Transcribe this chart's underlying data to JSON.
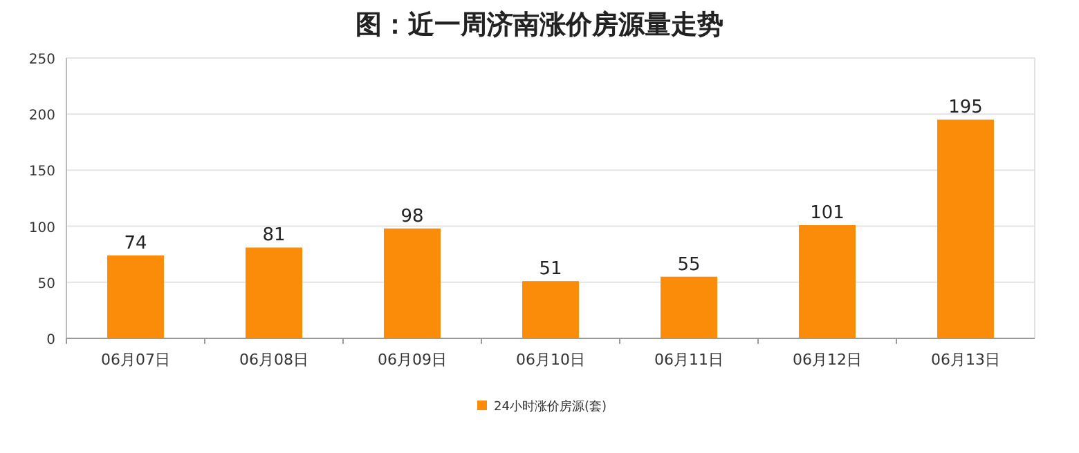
{
  "chart_data": {
    "type": "bar",
    "title": "图：近一周济南涨价房源量走势",
    "categories": [
      "06月07日",
      "06月08日",
      "06月09日",
      "06月10日",
      "06月11日",
      "06月12日",
      "06月13日"
    ],
    "series": [
      {
        "name": "24小时涨价房源(套)",
        "color": "#fb8c0a",
        "values": [
          74,
          81,
          98,
          51,
          55,
          101,
          195
        ]
      }
    ],
    "ylim": [
      0,
      250
    ],
    "yticks": [
      0,
      50,
      100,
      150,
      200,
      250
    ],
    "grid": "y",
    "legend": "bottom",
    "data_labels": true
  }
}
